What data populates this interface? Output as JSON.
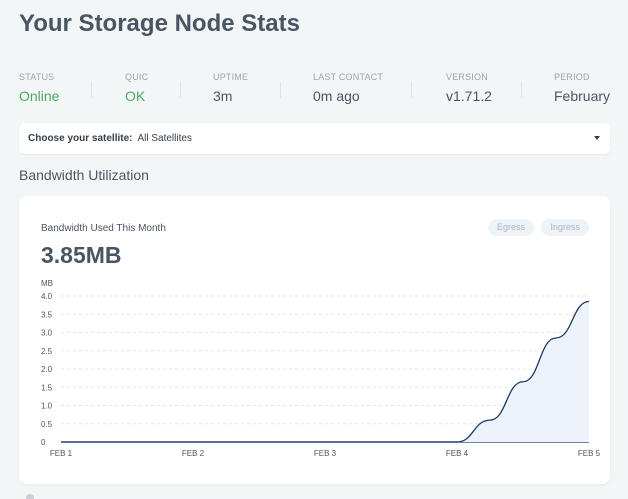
{
  "page": {
    "title": "Your Storage Node Stats"
  },
  "stats": [
    {
      "label": "STATUS",
      "value": "Online",
      "highlight": true
    },
    {
      "label": "QUIC",
      "value": "OK",
      "highlight": true
    },
    {
      "label": "UPTIME",
      "value": "3m",
      "highlight": false
    },
    {
      "label": "LAST CONTACT",
      "value": "0m ago",
      "highlight": false
    },
    {
      "label": "VERSION",
      "value": "v1.71.2",
      "highlight": false
    },
    {
      "label": "PERIOD",
      "value": "February",
      "highlight": false
    }
  ],
  "satellite": {
    "label": "Choose your satellite:",
    "value": "All Satellites"
  },
  "bandwidth": {
    "section_title": "Bandwidth Utilization",
    "card_title": "Bandwidth Used This Month",
    "amount": "3.85MB",
    "toggles": {
      "egress": "Egress",
      "ingress": "Ingress"
    }
  },
  "colors": {
    "status_ok": "#4ca95d",
    "line": "#1a3a63",
    "area_fill": "#eef3fb",
    "grid": "#dfe4ea"
  },
  "chart_data": {
    "type": "area",
    "ylabel": "MB",
    "ylim": [
      0,
      4.0
    ],
    "yticks": [
      "4.0",
      "3.5",
      "3.0",
      "2.5",
      "2.0",
      "1.5",
      "1.0",
      "0.5",
      "0"
    ],
    "xticks": [
      "FEB 1",
      "FEB 2",
      "FEB 3",
      "FEB 4",
      "FEB 5"
    ],
    "xlim": [
      1,
      5
    ],
    "grid": true,
    "series": [
      {
        "x": [
          1,
          2,
          3,
          4,
          4.25,
          4.5,
          4.75,
          5
        ],
        "values": [
          0,
          0,
          0,
          0,
          0.6,
          1.65,
          2.85,
          3.85
        ]
      }
    ]
  }
}
